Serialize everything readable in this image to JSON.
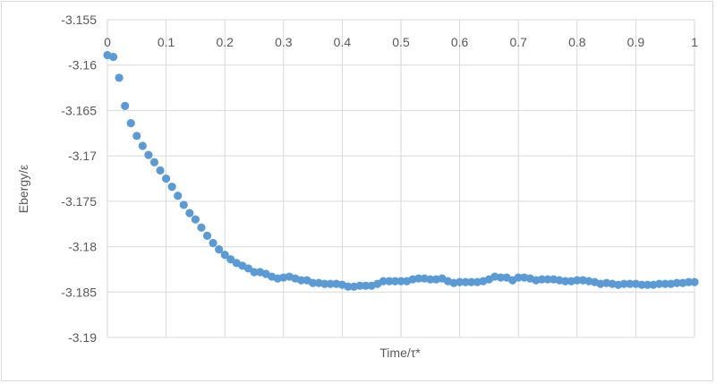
{
  "chart_data": {
    "type": "scatter",
    "xlabel": "Time/τ*",
    "ylabel": "Ebergy/ε",
    "xlim": [
      0,
      1
    ],
    "ylim": [
      -3.19,
      -3.155
    ],
    "x_ticks": [
      0,
      0.1,
      0.2,
      0.3,
      0.4,
      0.5,
      0.6,
      0.7,
      0.8,
      0.9,
      1
    ],
    "x_tick_labels": [
      "0",
      "0.1",
      "0.2",
      "0.3",
      "0.4",
      "0.5",
      "0.6",
      "0.7",
      "0.8",
      "0.9",
      "1"
    ],
    "y_ticks": [
      -3.155,
      -3.16,
      -3.165,
      -3.17,
      -3.175,
      -3.18,
      -3.185,
      -3.19
    ],
    "y_tick_labels": [
      "-3.155",
      "-3.16",
      "-3.165",
      "-3.17",
      "-3.175",
      "-3.18",
      "-3.185",
      "-3.19"
    ],
    "grid": true,
    "marker_color": "#5b9bd5",
    "series": [
      {
        "x": [
          0,
          0.01,
          0.02,
          0.03,
          0.04,
          0.05,
          0.06,
          0.07,
          0.08,
          0.09,
          0.1,
          0.11,
          0.12,
          0.13,
          0.14,
          0.15,
          0.16,
          0.17,
          0.18,
          0.19,
          0.2,
          0.21,
          0.22,
          0.23,
          0.24,
          0.25,
          0.26,
          0.27,
          0.28,
          0.29,
          0.3,
          0.31,
          0.32,
          0.33,
          0.34,
          0.35,
          0.36,
          0.37,
          0.38,
          0.39,
          0.4,
          0.41,
          0.42,
          0.43,
          0.44,
          0.45,
          0.46,
          0.47,
          0.48,
          0.49,
          0.5,
          0.51,
          0.52,
          0.53,
          0.54,
          0.55,
          0.56,
          0.57,
          0.58,
          0.59,
          0.6,
          0.61,
          0.62,
          0.63,
          0.64,
          0.65,
          0.66,
          0.67,
          0.68,
          0.69,
          0.7,
          0.71,
          0.72,
          0.73,
          0.74,
          0.75,
          0.76,
          0.77,
          0.78,
          0.79,
          0.8,
          0.81,
          0.82,
          0.83,
          0.84,
          0.85,
          0.86,
          0.87,
          0.88,
          0.89,
          0.9,
          0.91,
          0.92,
          0.93,
          0.94,
          0.95,
          0.96,
          0.97,
          0.98,
          0.99,
          1
        ],
        "y": [
          -3.1589,
          -3.1591,
          -3.1614,
          -3.1645,
          -3.1664,
          -3.1678,
          -3.1689,
          -3.1699,
          -3.1707,
          -3.1716,
          -3.1725,
          -3.1734,
          -3.1744,
          -3.1754,
          -3.1763,
          -3.177,
          -3.1779,
          -3.1788,
          -3.1796,
          -3.1803,
          -3.1809,
          -3.1814,
          -3.1818,
          -3.1821,
          -3.1824,
          -3.1828,
          -3.1828,
          -3.183,
          -3.1833,
          -3.1835,
          -3.1834,
          -3.1833,
          -3.1835,
          -3.1837,
          -3.1837,
          -3.184,
          -3.184,
          -3.1841,
          -3.1841,
          -3.1841,
          -3.1842,
          -3.1844,
          -3.1844,
          -3.1843,
          -3.1843,
          -3.1843,
          -3.1841,
          -3.1838,
          -3.1838,
          -3.1838,
          -3.1838,
          -3.1838,
          -3.1836,
          -3.1835,
          -3.1835,
          -3.1836,
          -3.1836,
          -3.1835,
          -3.1838,
          -3.184,
          -3.1839,
          -3.1839,
          -3.1839,
          -3.1839,
          -3.1838,
          -3.1836,
          -3.1833,
          -3.1834,
          -3.1834,
          -3.1837,
          -3.1834,
          -3.1834,
          -3.1835,
          -3.1837,
          -3.1836,
          -3.1836,
          -3.1836,
          -3.1837,
          -3.1838,
          -3.1838,
          -3.1837,
          -3.1837,
          -3.1838,
          -3.1839,
          -3.1841,
          -3.184,
          -3.1841,
          -3.1842,
          -3.1841,
          -3.1841,
          -3.1841,
          -3.1842,
          -3.1842,
          -3.1842,
          -3.1841,
          -3.1841,
          -3.1841,
          -3.184,
          -3.184,
          -3.1839,
          -3.1839
        ]
      }
    ]
  }
}
